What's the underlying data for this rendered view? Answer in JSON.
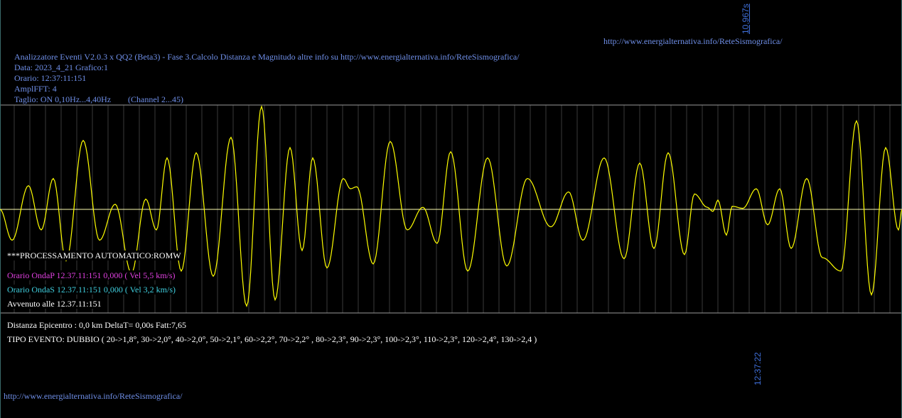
{
  "top_url": "http://www.energialternativa.info/ReteSismografica/",
  "bottom_url": "http://www.energialternativa.info/ReteSismografica/",
  "window_label": "10,967s",
  "time_label": "12:37:22",
  "header": {
    "title": "Analizzatore Eventi V2.0.3 x QQ2 (Beta3) - Fase 3.Calcolo Distanza e Magnitudo altre info su http://www.energialternativa.info/ReteSismografica/",
    "date": "Data: 2023_4_21 Grafico:1",
    "time": "Orario: 12:37:11:151",
    "ampl": "AmplFFT: 4",
    "filter": "Taglio: ON 0,10Hz...4,40Hz",
    "channel": "(Channel 2...45)"
  },
  "processing_label": "***PROCESSAMENTO AUTOMATICO:ROMW",
  "wave_p": "Orario OndaP 12.37.11:151  0,000 ( Vel 5,5 km/s)",
  "wave_s": "Orario OndaS 12.37.11:151  0,000 ( Vel 3,2 km/s)",
  "occurred": "Avvenuto alle 12.37.11:151",
  "distance": "Distanza Epicentro : 0,0 km DeltaT= 0,00s  Fatt:7,65",
  "event_type": "TIPO EVENTO: DUBBIO ( 20->1,8°, 30->2,0°, 40->2,0°, 50->2,1°, 60->2,2°, 70->2,2° , 80->2,3°, 90->2,3°, 100->2,3°, 110->2,3°, 120->2,4°, 130->2,4 )",
  "colors": {
    "background": "#000000",
    "trace": "#ffff00",
    "baseline": "#ffffb0",
    "grid": "#3a3a3a",
    "text_blue": "#6f8fe8",
    "wave_p": "#e040e0",
    "wave_s": "#40d0e0",
    "text_white": "#ffffff"
  },
  "trace_peaks": [
    [
      0,
      0
    ],
    [
      17,
      -0.3
    ],
    [
      40,
      0.23
    ],
    [
      58,
      -0.2
    ],
    [
      75,
      0.3
    ],
    [
      93,
      -0.5
    ],
    [
      117,
      0.67
    ],
    [
      140,
      -0.3
    ],
    [
      162,
      0.05
    ],
    [
      185,
      -0.62
    ],
    [
      205,
      0.1
    ],
    [
      220,
      -0.2
    ],
    [
      235,
      0.5
    ],
    [
      255,
      -0.6
    ],
    [
      276,
      0.55
    ],
    [
      300,
      -0.65
    ],
    [
      325,
      0.7
    ],
    [
      347,
      -0.94
    ],
    [
      368,
      1.0
    ],
    [
      387,
      -0.88
    ],
    [
      408,
      0.6
    ],
    [
      425,
      -0.4
    ],
    [
      440,
      0.5
    ],
    [
      460,
      -0.57
    ],
    [
      483,
      0.3
    ],
    [
      493,
      0.2
    ],
    [
      502,
      0.22
    ],
    [
      525,
      -0.53
    ],
    [
      549,
      0.66
    ],
    [
      573,
      -0.2
    ],
    [
      595,
      0.02
    ],
    [
      615,
      -0.33
    ],
    [
      634,
      0.56
    ],
    [
      658,
      -0.6
    ],
    [
      686,
      0.5
    ],
    [
      713,
      -0.55
    ],
    [
      742,
      0.3
    ],
    [
      775,
      -0.17
    ],
    [
      800,
      0.17
    ],
    [
      820,
      -0.3
    ],
    [
      850,
      0.5
    ],
    [
      878,
      -0.48
    ],
    [
      900,
      0.45
    ],
    [
      920,
      -0.38
    ],
    [
      940,
      0.55
    ],
    [
      963,
      -0.44
    ],
    [
      977,
      0.15
    ],
    [
      995,
      0.02
    ],
    [
      1003,
      -0.02
    ],
    [
      1010,
      0.09
    ],
    [
      1022,
      -0.25
    ],
    [
      1030,
      0.03
    ],
    [
      1045,
      0.01
    ],
    [
      1064,
      0.2
    ],
    [
      1080,
      -0.15
    ],
    [
      1097,
      0.2
    ],
    [
      1113,
      -0.38
    ],
    [
      1135,
      0.3
    ],
    [
      1157,
      -0.47
    ],
    [
      1183,
      -0.6
    ],
    [
      1205,
      0.86
    ],
    [
      1226,
      -0.83
    ],
    [
      1246,
      0.6
    ],
    [
      1264,
      -0.2
    ],
    [
      1269,
      0
    ]
  ]
}
